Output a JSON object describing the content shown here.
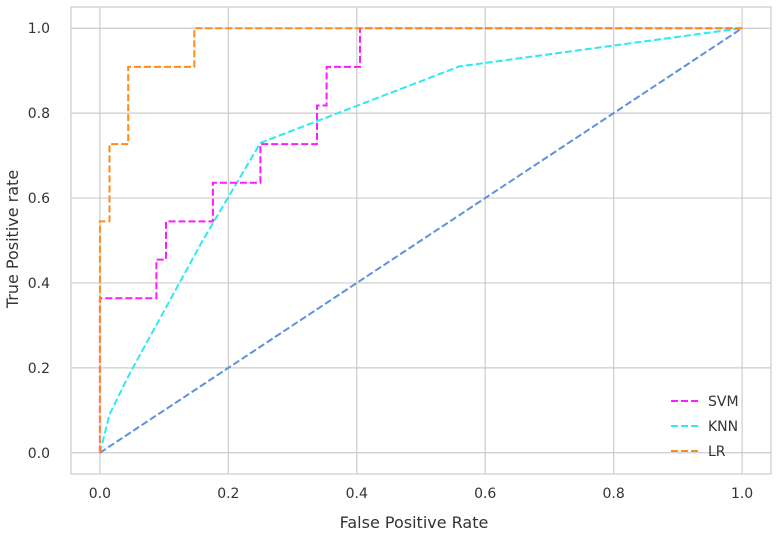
{
  "chart_data": {
    "type": "line",
    "title": "",
    "xlabel": "False Positive Rate",
    "ylabel": "True Positive rate",
    "xlim": [
      -0.045,
      1.045
    ],
    "ylim": [
      -0.05,
      1.05
    ],
    "xticks": [
      "0.0",
      "0.2",
      "0.4",
      "0.6",
      "0.8",
      "1.0"
    ],
    "yticks": [
      "0.0",
      "0.2",
      "0.4",
      "0.6",
      "0.8",
      "1.0"
    ],
    "grid": true,
    "legend_position": "bottom-right",
    "series": [
      {
        "name": "SVM",
        "color": "#ff1aff",
        "dashed": true,
        "x": [
          0,
          0,
          0.088,
          0.088,
          0.103,
          0.103,
          0.176,
          0.176,
          0.25,
          0.25,
          0.338,
          0.338,
          0.353,
          0.353,
          0.405,
          0.405,
          1.0
        ],
        "y": [
          0,
          0.364,
          0.364,
          0.455,
          0.455,
          0.545,
          0.545,
          0.636,
          0.636,
          0.727,
          0.727,
          0.818,
          0.818,
          0.909,
          0.909,
          1.0,
          1.0
        ]
      },
      {
        "name": "KNN",
        "color": "#2ee8f2",
        "dashed": true,
        "x": [
          0,
          0.015,
          0.044,
          0.16,
          0.25,
          0.56,
          1.0
        ],
        "y": [
          0,
          0.09,
          0.18,
          0.5,
          0.73,
          0.91,
          1.0
        ]
      },
      {
        "name": "LR",
        "color": "#ff8c1a",
        "dashed": true,
        "x": [
          0,
          0,
          0.015,
          0.015,
          0.044,
          0.044,
          0.147,
          0.147,
          1.0
        ],
        "y": [
          0,
          0.545,
          0.545,
          0.727,
          0.727,
          0.909,
          0.909,
          1.0,
          1.0
        ]
      }
    ],
    "reference_line": {
      "color": "#5b93db",
      "dashed": true,
      "x": [
        0,
        1
      ],
      "y": [
        0,
        1
      ]
    }
  }
}
